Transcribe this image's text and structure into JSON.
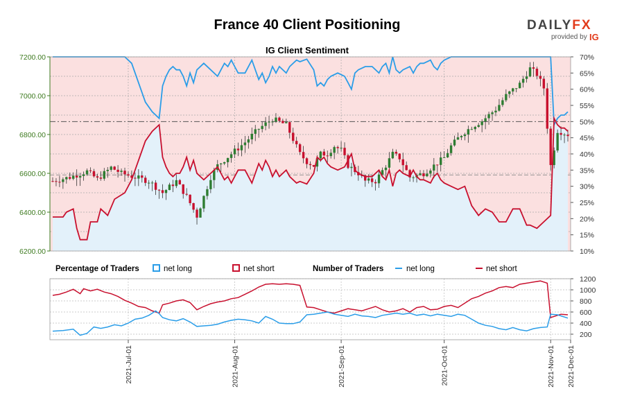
{
  "header": {
    "title": "France 40 Client Positioning",
    "logo": {
      "brand_left": "DAILY",
      "brand_right": "FX",
      "provided_by": "provided by",
      "ig": "IG"
    }
  },
  "colors": {
    "long": "#2a9de8",
    "short": "#c8102e",
    "long_fill": "#e3f1fa",
    "short_fill": "#fbe0e0",
    "candle_up": "#2e7d32",
    "candle_down": "#c8102e",
    "left_axis": "#3d7a1f"
  },
  "chart_data": [
    {
      "type": "candlestick+area",
      "title": "IG Client Sentiment",
      "price_axis": {
        "side": "left",
        "ylim": [
          6200,
          7200
        ],
        "ticks": [
          "6200.00",
          "6400.00",
          "6600.00",
          "6800.00",
          "7000.00",
          "7200.00"
        ]
      },
      "percent_axis": {
        "side": "right",
        "ylim": [
          10,
          70
        ],
        "ticks": [
          "10%",
          "15%",
          "20%",
          "25%",
          "30%",
          "35%",
          "40%",
          "45%",
          "50%",
          "55%",
          "60%",
          "65%",
          "70%"
        ],
        "reference_line": 50
      },
      "x_labels": [
        "2021-Jul-01",
        "2021-Aug-01",
        "2021-Sep-01",
        "2021-Oct-01",
        "2021-Nov-01",
        "2021-Dec-01"
      ],
      "price_close_anchors": [
        [
          0,
          6560
        ],
        [
          5,
          6580
        ],
        [
          10,
          6610
        ],
        [
          13,
          6570
        ],
        [
          17,
          6630
        ],
        [
          20,
          6600
        ],
        [
          24,
          6580
        ],
        [
          28,
          6560
        ],
        [
          32,
          6500
        ],
        [
          36,
          6560
        ],
        [
          39,
          6480
        ],
        [
          42,
          6380
        ],
        [
          44,
          6480
        ],
        [
          46,
          6580
        ],
        [
          48,
          6640
        ],
        [
          52,
          6700
        ],
        [
          56,
          6760
        ],
        [
          60,
          6830
        ],
        [
          64,
          6880
        ],
        [
          68,
          6850
        ],
        [
          72,
          6700
        ],
        [
          74,
          6660
        ],
        [
          76,
          6640
        ],
        [
          78,
          6700
        ],
        [
          80,
          6700
        ],
        [
          82,
          6740
        ],
        [
          84,
          6720
        ],
        [
          86,
          6640
        ],
        [
          89,
          6600
        ],
        [
          91,
          6560
        ],
        [
          94,
          6560
        ],
        [
          97,
          6640
        ],
        [
          99,
          6700
        ],
        [
          101,
          6680
        ],
        [
          104,
          6580
        ],
        [
          108,
          6600
        ],
        [
          111,
          6640
        ],
        [
          114,
          6680
        ],
        [
          116,
          6740
        ],
        [
          119,
          6800
        ],
        [
          122,
          6840
        ],
        [
          125,
          6870
        ],
        [
          129,
          6930
        ],
        [
          132,
          7000
        ],
        [
          136,
          7060
        ],
        [
          139,
          7140
        ],
        [
          141,
          7110
        ],
        [
          143,
          7040
        ],
        [
          145,
          6640
        ],
        [
          147,
          6820
        ],
        [
          150,
          6800
        ]
      ],
      "net_long_pct": [
        [
          0,
          20.5
        ],
        [
          3,
          20.5
        ],
        [
          4,
          22
        ],
        [
          6,
          23
        ],
        [
          7,
          17
        ],
        [
          8,
          13.5
        ],
        [
          10,
          13.5
        ],
        [
          11,
          19
        ],
        [
          13,
          19
        ],
        [
          14,
          23
        ],
        [
          16,
          21
        ],
        [
          18,
          26
        ],
        [
          21,
          28
        ],
        [
          23,
          32
        ],
        [
          25,
          38
        ],
        [
          27,
          44
        ],
        [
          29,
          47
        ],
        [
          31,
          49
        ],
        [
          32,
          39
        ],
        [
          33,
          36
        ],
        [
          34,
          34
        ],
        [
          35,
          33
        ],
        [
          36,
          34
        ],
        [
          37,
          34
        ],
        [
          38,
          36
        ],
        [
          39,
          39
        ],
        [
          40,
          35
        ],
        [
          41,
          38
        ],
        [
          42,
          34
        ],
        [
          44,
          32
        ],
        [
          46,
          34
        ],
        [
          48,
          36
        ],
        [
          49,
          34
        ],
        [
          50,
          32
        ],
        [
          51,
          33
        ],
        [
          52,
          31
        ],
        [
          53,
          33
        ],
        [
          54,
          35
        ],
        [
          56,
          35
        ],
        [
          58,
          31
        ],
        [
          60,
          37
        ],
        [
          61,
          35
        ],
        [
          62,
          38
        ],
        [
          63,
          36
        ],
        [
          64,
          33
        ],
        [
          65,
          35
        ],
        [
          66,
          33
        ],
        [
          68,
          35
        ],
        [
          69,
          33
        ],
        [
          71,
          31
        ],
        [
          72,
          31.5
        ],
        [
          74,
          30.7
        ],
        [
          76,
          34
        ],
        [
          77,
          39
        ],
        [
          78,
          38
        ],
        [
          79,
          39
        ],
        [
          80,
          37
        ],
        [
          81,
          36
        ],
        [
          83,
          35
        ],
        [
          85,
          36
        ],
        [
          86,
          38
        ],
        [
          87,
          40
        ],
        [
          88,
          35
        ],
        [
          89,
          34
        ],
        [
          91,
          33
        ],
        [
          93,
          33
        ],
        [
          95,
          35
        ],
        [
          96,
          33
        ],
        [
          97,
          32
        ],
        [
          98,
          35
        ],
        [
          99,
          30
        ],
        [
          100,
          34
        ],
        [
          101,
          35
        ],
        [
          102,
          34
        ],
        [
          104,
          33
        ],
        [
          105,
          35
        ],
        [
          106,
          33
        ],
        [
          107,
          32
        ],
        [
          108,
          32
        ],
        [
          110,
          31
        ],
        [
          111,
          33
        ],
        [
          112,
          34
        ],
        [
          113,
          32
        ],
        [
          114,
          31
        ],
        [
          116,
          30
        ],
        [
          118,
          29
        ],
        [
          120,
          30
        ],
        [
          122,
          24
        ],
        [
          124,
          21
        ],
        [
          126,
          23
        ],
        [
          128,
          22
        ],
        [
          130,
          19
        ],
        [
          132,
          19
        ],
        [
          134,
          23
        ],
        [
          136,
          23
        ],
        [
          138,
          18
        ],
        [
          139,
          18
        ],
        [
          141,
          17
        ],
        [
          143,
          19
        ],
        [
          145,
          21
        ],
        [
          146,
          51
        ],
        [
          147,
          49
        ],
        [
          148,
          48
        ],
        [
          149,
          48
        ],
        [
          150,
          47
        ]
      ],
      "num_long": [
        [
          0,
          255
        ],
        [
          3,
          265
        ],
        [
          6,
          290
        ],
        [
          8,
          180
        ],
        [
          10,
          215
        ],
        [
          12,
          330
        ],
        [
          14,
          305
        ],
        [
          16,
          330
        ],
        [
          18,
          370
        ],
        [
          20,
          350
        ],
        [
          22,
          400
        ],
        [
          24,
          470
        ],
        [
          26,
          490
        ],
        [
          28,
          540
        ],
        [
          30,
          620
        ],
        [
          31,
          570
        ],
        [
          32,
          500
        ],
        [
          34,
          460
        ],
        [
          36,
          440
        ],
        [
          38,
          480
        ],
        [
          40,
          420
        ],
        [
          42,
          340
        ],
        [
          44,
          350
        ],
        [
          46,
          360
        ],
        [
          48,
          380
        ],
        [
          50,
          420
        ],
        [
          52,
          450
        ],
        [
          54,
          470
        ],
        [
          56,
          460
        ],
        [
          58,
          440
        ],
        [
          60,
          400
        ],
        [
          62,
          520
        ],
        [
          64,
          470
        ],
        [
          66,
          400
        ],
        [
          68,
          390
        ],
        [
          70,
          390
        ],
        [
          72,
          420
        ],
        [
          74,
          550
        ],
        [
          76,
          560
        ],
        [
          78,
          580
        ],
        [
          80,
          600
        ],
        [
          82,
          560
        ],
        [
          84,
          540
        ],
        [
          86,
          520
        ],
        [
          88,
          560
        ],
        [
          90,
          530
        ],
        [
          92,
          520
        ],
        [
          94,
          500
        ],
        [
          96,
          540
        ],
        [
          98,
          560
        ],
        [
          100,
          580
        ],
        [
          102,
          560
        ],
        [
          104,
          580
        ],
        [
          106,
          540
        ],
        [
          108,
          560
        ],
        [
          110,
          530
        ],
        [
          112,
          560
        ],
        [
          114,
          540
        ],
        [
          116,
          520
        ],
        [
          118,
          560
        ],
        [
          120,
          540
        ],
        [
          122,
          470
        ],
        [
          124,
          400
        ],
        [
          126,
          360
        ],
        [
          128,
          340
        ],
        [
          130,
          300
        ],
        [
          132,
          280
        ],
        [
          134,
          320
        ],
        [
          136,
          280
        ],
        [
          138,
          260
        ],
        [
          140,
          300
        ],
        [
          142,
          320
        ],
        [
          144,
          330
        ],
        [
          145,
          560
        ],
        [
          147,
          550
        ],
        [
          148,
          530
        ],
        [
          150,
          490
        ]
      ],
      "num_short": [
        [
          0,
          900
        ],
        [
          2,
          920
        ],
        [
          4,
          960
        ],
        [
          6,
          1010
        ],
        [
          8,
          930
        ],
        [
          9,
          1020
        ],
        [
          11,
          980
        ],
        [
          13,
          1010
        ],
        [
          15,
          960
        ],
        [
          17,
          930
        ],
        [
          19,
          880
        ],
        [
          21,
          810
        ],
        [
          23,
          760
        ],
        [
          25,
          700
        ],
        [
          27,
          680
        ],
        [
          29,
          620
        ],
        [
          31,
          580
        ],
        [
          32,
          730
        ],
        [
          34,
          760
        ],
        [
          36,
          800
        ],
        [
          38,
          820
        ],
        [
          40,
          770
        ],
        [
          42,
          640
        ],
        [
          44,
          700
        ],
        [
          46,
          750
        ],
        [
          48,
          780
        ],
        [
          50,
          800
        ],
        [
          52,
          840
        ],
        [
          54,
          860
        ],
        [
          56,
          920
        ],
        [
          58,
          980
        ],
        [
          60,
          1050
        ],
        [
          62,
          1100
        ],
        [
          64,
          1110
        ],
        [
          66,
          1100
        ],
        [
          68,
          1110
        ],
        [
          70,
          1100
        ],
        [
          72,
          1080
        ],
        [
          74,
          690
        ],
        [
          76,
          680
        ],
        [
          78,
          640
        ],
        [
          80,
          600
        ],
        [
          82,
          580
        ],
        [
          84,
          620
        ],
        [
          86,
          660
        ],
        [
          88,
          640
        ],
        [
          90,
          620
        ],
        [
          92,
          660
        ],
        [
          94,
          700
        ],
        [
          96,
          640
        ],
        [
          98,
          600
        ],
        [
          100,
          620
        ],
        [
          102,
          660
        ],
        [
          104,
          600
        ],
        [
          106,
          680
        ],
        [
          108,
          700
        ],
        [
          110,
          640
        ],
        [
          112,
          650
        ],
        [
          114,
          700
        ],
        [
          116,
          720
        ],
        [
          118,
          680
        ],
        [
          120,
          760
        ],
        [
          122,
          840
        ],
        [
          124,
          880
        ],
        [
          126,
          940
        ],
        [
          128,
          980
        ],
        [
          130,
          1040
        ],
        [
          132,
          1060
        ],
        [
          134,
          1040
        ],
        [
          136,
          1100
        ],
        [
          138,
          1120
        ],
        [
          140,
          1140
        ],
        [
          142,
          1160
        ],
        [
          144,
          1120
        ],
        [
          145,
          500
        ],
        [
          147,
          540
        ],
        [
          148,
          560
        ],
        [
          150,
          550
        ]
      ]
    },
    {
      "type": "line",
      "title": "Number of Traders",
      "axis": {
        "side": "right",
        "ylim": [
          100,
          1200
        ],
        "ticks": [
          "200",
          "400",
          "600",
          "800",
          "1000",
          "1200"
        ]
      }
    }
  ],
  "legend": {
    "pct_heading": "Percentage of Traders",
    "pct_long": "net long",
    "pct_short": "net short",
    "num_heading": "Number of Traders",
    "num_long": "net long",
    "num_short": "net short"
  }
}
